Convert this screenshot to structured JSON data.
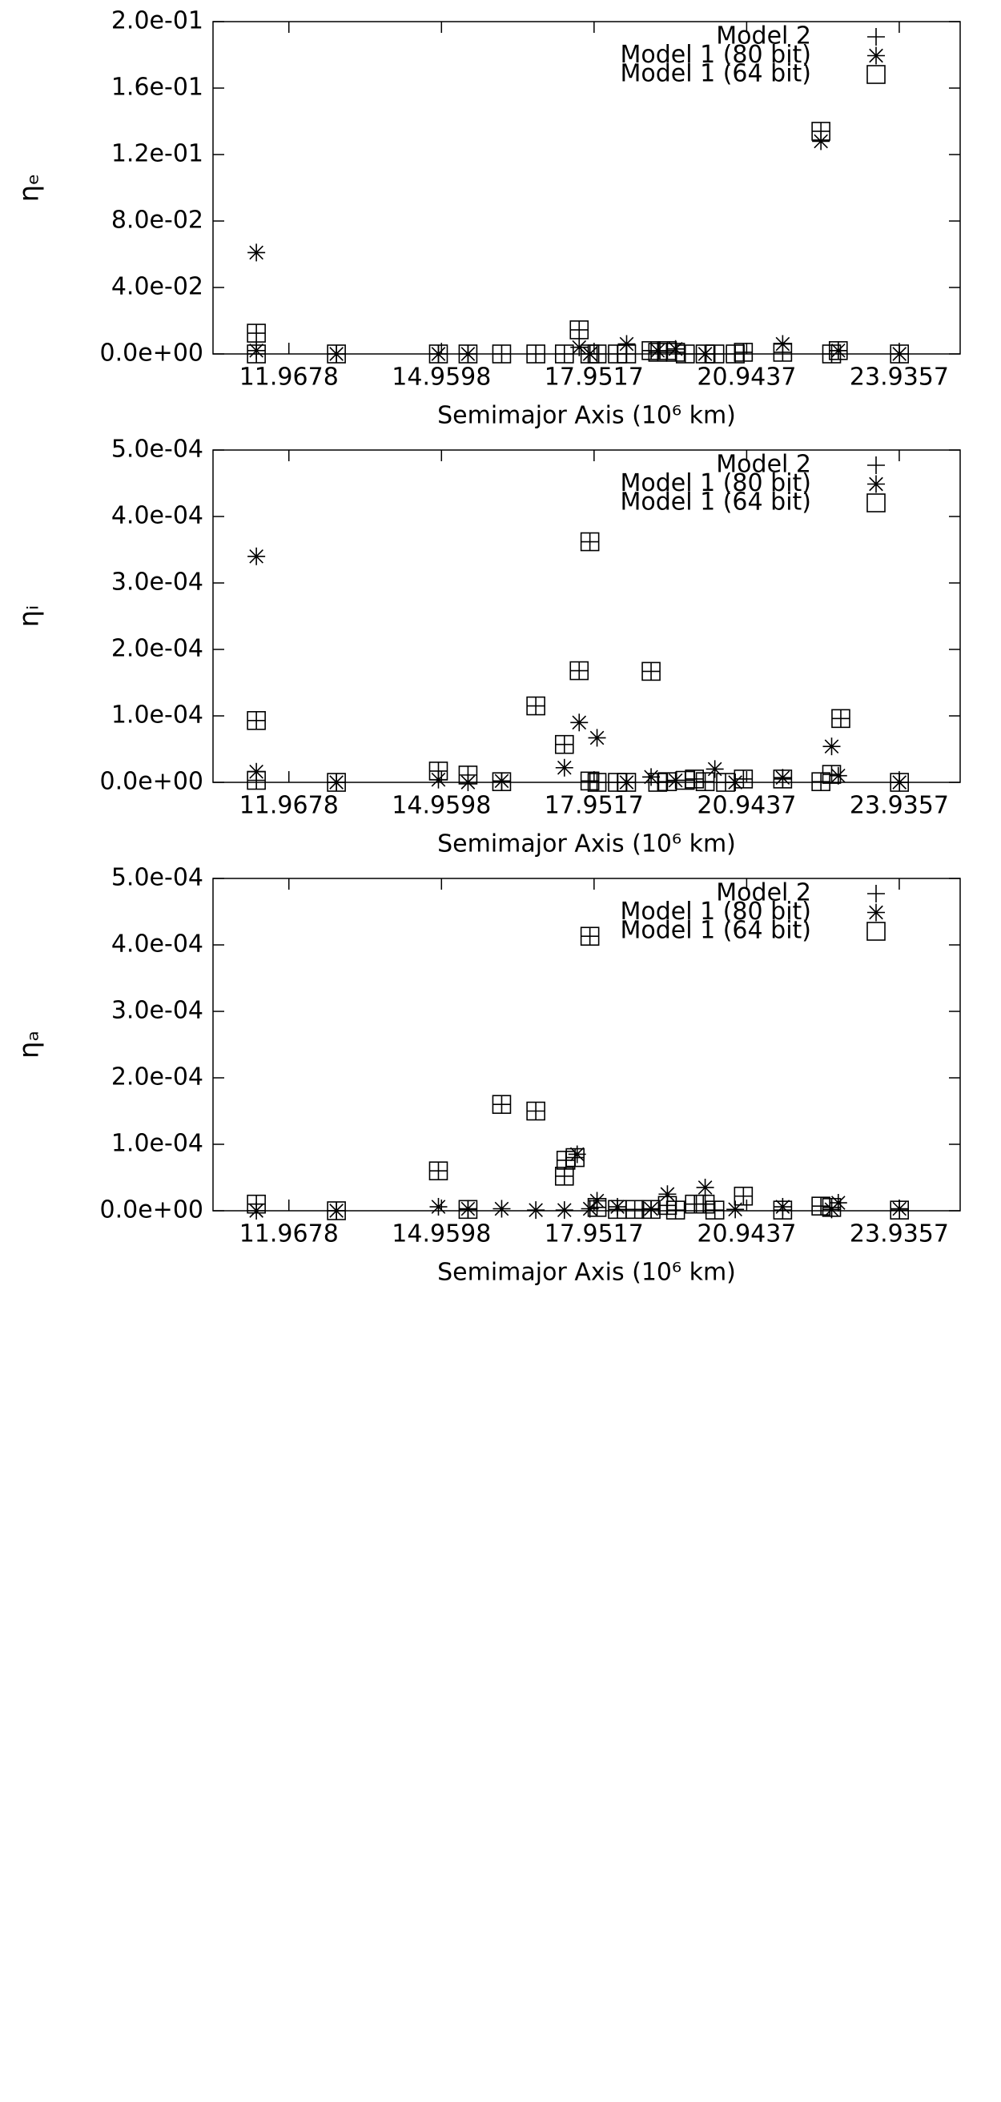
{
  "chart_data": [
    {
      "type": "scatter",
      "ylabel": "ηₑ",
      "xlabel": "Semimajor Axis (10⁶ km)",
      "legend": "upper right",
      "xlim": [
        10.48,
        25.13
      ],
      "xticks": [
        11.9678,
        14.9598,
        17.9517,
        20.9437,
        23.9357
      ],
      "ylim": [
        0,
        0.2
      ],
      "yticks": [
        {
          "value": 0,
          "label": "0.0e+00"
        },
        {
          "value": 0.04,
          "label": "4.0e-02"
        },
        {
          "value": 0.08,
          "label": "8.0e-02"
        },
        {
          "value": 0.12,
          "label": "1.2e-01"
        },
        {
          "value": 0.16,
          "label": "1.6e-01"
        },
        {
          "value": 0.2,
          "label": "2.0e-01"
        }
      ],
      "series": [
        {
          "name": "Model 2",
          "marker": "plus",
          "color": "#000000",
          "x": [
            11.33,
            11.33,
            12.9,
            14.9,
            15.48,
            16.14,
            16.81,
            17.37,
            17.66,
            17.87,
            18.01,
            18.41,
            18.59,
            19.07,
            19.2,
            19.39,
            19.55,
            19.74,
            20.13,
            20.32,
            20.72,
            20.88,
            21.65,
            22.4,
            22.61,
            22.74,
            23.94
          ],
          "y": [
            0.0125,
            0,
            0,
            0,
            0,
            0,
            0,
            0,
            0.0145,
            0,
            0,
            0,
            0,
            0.002,
            0.001,
            0.002,
            0.001,
            0,
            0,
            0,
            0,
            0.001,
            0.001,
            0.134,
            0,
            0.002,
            0
          ]
        },
        {
          "name": "Model 1 (80 bit)",
          "marker": "asterisk",
          "color": "#000000",
          "x": [
            11.33,
            11.33,
            12.9,
            14.9,
            15.48,
            17.66,
            17.87,
            18.59,
            19.2,
            19.55,
            20.13,
            21.65,
            22.4,
            22.74,
            23.94
          ],
          "y": [
            0.061,
            0.002,
            0,
            0,
            0,
            0.004,
            0,
            0.006,
            0.002,
            0.003,
            0,
            0.006,
            0.128,
            0.002,
            0
          ]
        },
        {
          "name": "Model 1 (64 bit)",
          "marker": "square",
          "color": "#000000",
          "x": [
            11.33,
            11.33,
            12.9,
            14.9,
            15.48,
            16.14,
            16.81,
            17.37,
            17.66,
            17.87,
            18.01,
            18.41,
            18.59,
            19.07,
            19.2,
            19.39,
            19.55,
            19.74,
            20.13,
            20.32,
            20.72,
            20.88,
            21.65,
            22.4,
            22.61,
            22.74,
            23.94
          ],
          "y": [
            0.0125,
            0,
            0,
            0,
            0,
            0,
            0,
            0,
            0.0145,
            0,
            0,
            0,
            0,
            0.002,
            0.001,
            0.002,
            0.001,
            0,
            0,
            0,
            0,
            0.001,
            0.001,
            0.134,
            0,
            0.002,
            0
          ]
        }
      ]
    },
    {
      "type": "scatter",
      "ylabel": "ηᵢ",
      "xlabel": "Semimajor Axis (10⁶ km)",
      "legend": "upper right",
      "xlim": [
        10.48,
        25.13
      ],
      "xticks": [
        11.9678,
        14.9598,
        17.9517,
        20.9437,
        23.9357
      ],
      "ylim": [
        0,
        0.0005
      ],
      "yticks": [
        {
          "value": 0,
          "label": "0.0e+00"
        },
        {
          "value": 0.0001,
          "label": "1.0e-04"
        },
        {
          "value": 0.0002,
          "label": "2.0e-04"
        },
        {
          "value": 0.0003,
          "label": "3.0e-04"
        },
        {
          "value": 0.0004,
          "label": "4.0e-04"
        },
        {
          "value": 0.0005,
          "label": "5.0e-04"
        }
      ],
      "series": [
        {
          "name": "Model 2",
          "marker": "plus",
          "color": "#000000",
          "x": [
            11.33,
            11.33,
            12.9,
            14.9,
            15.48,
            16.14,
            16.81,
            17.37,
            17.66,
            17.87,
            17.87,
            18.01,
            18.41,
            18.59,
            19.07,
            19.2,
            19.39,
            19.74,
            19.92,
            20.13,
            20.53,
            20.88,
            21.65,
            22.4,
            22.61,
            22.79,
            23.94
          ],
          "y": [
            9.3e-05,
            3e-06,
            0,
            1.7e-05,
            1.1e-05,
            1e-06,
            0.000115,
            5.7e-05,
            0.000168,
            0.000362,
            2e-06,
            0,
            0,
            0,
            0.000167,
            0,
            1e-06,
            3e-06,
            5e-06,
            1e-06,
            0,
            5e-06,
            5e-06,
            1e-06,
            1.2e-05,
            9.6e-05,
            0
          ]
        },
        {
          "name": "Model 1 (80 bit)",
          "marker": "asterisk",
          "color": "#000000",
          "x": [
            11.33,
            11.33,
            12.9,
            14.9,
            15.48,
            16.14,
            17.37,
            17.66,
            18.01,
            18.59,
            19.07,
            19.55,
            20.32,
            20.72,
            21.65,
            22.61,
            22.74,
            23.94
          ],
          "y": [
            0.00034,
            1.6e-05,
            0,
            4e-06,
            0,
            2e-06,
            2.2e-05,
            9e-05,
            6.7e-05,
            0,
            8e-06,
            3e-06,
            2e-05,
            0,
            7e-06,
            5.4e-05,
            1e-05,
            0
          ]
        },
        {
          "name": "Model 1 (64 bit)",
          "marker": "square",
          "color": "#000000",
          "x": [
            11.33,
            11.33,
            12.9,
            14.9,
            15.48,
            16.14,
            16.81,
            17.37,
            17.66,
            17.87,
            17.87,
            18.01,
            18.41,
            18.59,
            19.07,
            19.2,
            19.39,
            19.74,
            19.92,
            20.13,
            20.53,
            20.88,
            21.65,
            22.4,
            22.61,
            22.79,
            23.94
          ],
          "y": [
            9.3e-05,
            3e-06,
            0,
            1.7e-05,
            1.1e-05,
            1e-06,
            0.000115,
            5.7e-05,
            0.000168,
            0.000362,
            2e-06,
            0,
            0,
            0,
            0.000167,
            0,
            1e-06,
            3e-06,
            5e-06,
            1e-06,
            0,
            5e-06,
            5e-06,
            1e-06,
            1.2e-05,
            9.6e-05,
            0
          ]
        }
      ]
    },
    {
      "type": "scatter",
      "ylabel": "ηₐ",
      "xlabel": "Semimajor Axis (10⁶ km)",
      "legend": "upper right",
      "xlim": [
        10.48,
        25.13
      ],
      "xticks": [
        11.9678,
        14.9598,
        17.9517,
        20.9437,
        23.9357
      ],
      "ylim": [
        0,
        0.0005
      ],
      "yticks": [
        {
          "value": 0,
          "label": "0.0e+00"
        },
        {
          "value": 0.0001,
          "label": "1.0e-04"
        },
        {
          "value": 0.0002,
          "label": "2.0e-04"
        },
        {
          "value": 0.0003,
          "label": "3.0e-04"
        },
        {
          "value": 0.0004,
          "label": "4.0e-04"
        },
        {
          "value": 0.0005,
          "label": "5.0e-04"
        }
      ],
      "series": [
        {
          "name": "Model 2",
          "marker": "plus",
          "color": "#000000",
          "x": [
            11.33,
            12.9,
            14.9,
            15.48,
            16.14,
            16.81,
            17.37,
            17.4,
            17.58,
            17.87,
            18.01,
            18.41,
            18.75,
            19.07,
            19.39,
            19.55,
            19.92,
            20.13,
            20.32,
            20.88,
            21.65,
            22.4,
            22.61,
            23.94
          ],
          "y": [
            1e-05,
            0,
            6e-05,
            2e-06,
            0.00016,
            0.00015,
            5.2e-05,
            7.6e-05,
            8e-05,
            0.000413,
            5e-06,
            2e-06,
            2e-06,
            2e-06,
            8e-06,
            1e-06,
            1e-05,
            1e-05,
            1e-06,
            2.2e-05,
            1e-06,
            7e-06,
            5e-06,
            1e-06
          ]
        },
        {
          "name": "Model 1 (80 bit)",
          "marker": "asterisk",
          "color": "#000000",
          "x": [
            11.33,
            12.9,
            14.9,
            15.48,
            16.14,
            16.81,
            17.37,
            17.62,
            17.87,
            18.01,
            18.41,
            19.07,
            19.39,
            20.13,
            20.72,
            21.65,
            22.61,
            22.74,
            23.94
          ],
          "y": [
            0,
            0,
            6e-06,
            3e-06,
            3e-06,
            1e-06,
            1e-06,
            8.5e-05,
            3e-06,
            1.5e-05,
            6e-06,
            3e-06,
            2.5e-05,
            3.5e-05,
            2e-06,
            6e-06,
            2e-06,
            1.2e-05,
            3e-06
          ]
        },
        {
          "name": "Model 1 (64 bit)",
          "marker": "square",
          "color": "#000000",
          "x": [
            11.33,
            12.9,
            14.9,
            15.48,
            16.14,
            16.81,
            17.37,
            17.4,
            17.58,
            17.87,
            18.01,
            18.41,
            18.75,
            19.07,
            19.39,
            19.55,
            19.92,
            20.13,
            20.32,
            20.88,
            21.65,
            22.4,
            22.61,
            23.94
          ],
          "y": [
            1e-05,
            0,
            6e-05,
            2e-06,
            0.00016,
            0.00015,
            5.2e-05,
            7.6e-05,
            8e-05,
            0.000413,
            5e-06,
            2e-06,
            2e-06,
            2e-06,
            8e-06,
            1e-06,
            1e-05,
            1e-05,
            1e-06,
            2.2e-05,
            1e-06,
            7e-06,
            5e-06,
            1e-06
          ]
        }
      ]
    }
  ]
}
